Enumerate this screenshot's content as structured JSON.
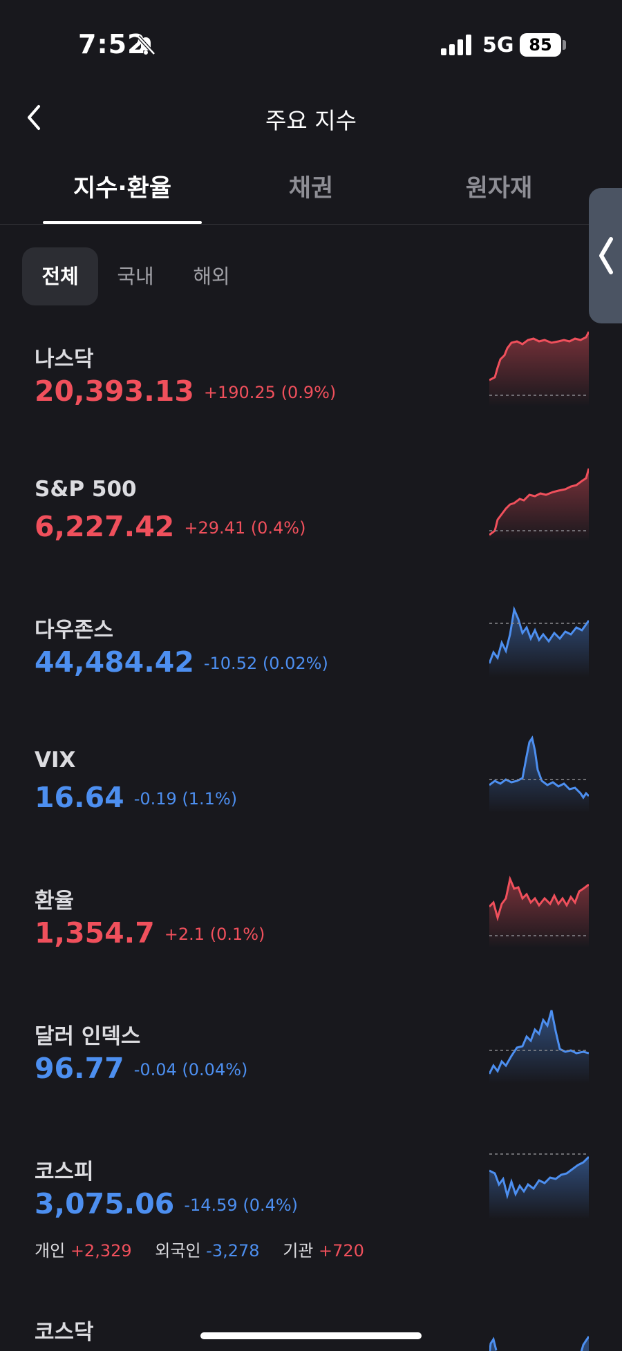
{
  "status_bar": {
    "time": "7:52",
    "network": "5G",
    "battery": "85"
  },
  "header": {
    "title": "주요 지수"
  },
  "tabs": [
    {
      "label": "지수·환율"
    },
    {
      "label": "채권"
    },
    {
      "label": "원자재"
    }
  ],
  "chips": [
    {
      "label": "전체"
    },
    {
      "label": "국내"
    },
    {
      "label": "해외"
    }
  ],
  "colors": {
    "up": "#f0505c",
    "down": "#4d8ff0",
    "background": "#18181d"
  },
  "indices": [
    {
      "name": "나스닥",
      "value": "20,393.13",
      "change": "+190.25 (0.9%)",
      "direction": "up"
    },
    {
      "name": "S&P 500",
      "value": "6,227.42",
      "change": "+29.41 (0.4%)",
      "direction": "up"
    },
    {
      "name": "다우존스",
      "value": "44,484.42",
      "change": "-10.52 (0.02%)",
      "direction": "down"
    },
    {
      "name": "VIX",
      "value": "16.64",
      "change": "-0.19 (1.1%)",
      "direction": "down"
    },
    {
      "name": "환율",
      "value": "1,354.7",
      "change": "+2.1 (0.1%)",
      "direction": "up"
    },
    {
      "name": "달러 인덱스",
      "value": "96.77",
      "change": "-0.04 (0.04%)",
      "direction": "down"
    },
    {
      "name": "코스피",
      "value": "3,075.06",
      "change": "-14.59 (0.4%)",
      "direction": "down",
      "investors": {
        "individual_label": "개인",
        "individual_value": "+2,329",
        "foreign_label": "외국인",
        "foreign_value": "-3,278",
        "institution_label": "기관",
        "institution_value": "+720"
      }
    },
    {
      "name": "코스닥"
    }
  ]
}
